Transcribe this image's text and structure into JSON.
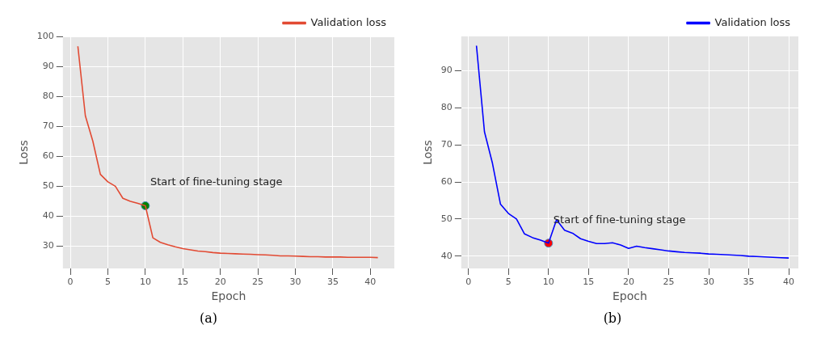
{
  "chart_data": [
    {
      "type": "line",
      "xlabel": "Epoch",
      "ylabel": "Loss",
      "legend": "top right",
      "grid": true,
      "xlim": [
        -1,
        43.2
      ],
      "ylim": [
        22.6,
        100
      ],
      "xticks": [
        0,
        5,
        10,
        15,
        20,
        25,
        30,
        35,
        40
      ],
      "yticks": [
        30,
        40,
        50,
        60,
        70,
        80,
        90,
        100
      ],
      "x": [
        1,
        2,
        3,
        4,
        5,
        6,
        7,
        8,
        9,
        10,
        11,
        12,
        13,
        14,
        15,
        16,
        17,
        18,
        19,
        20,
        21,
        22,
        23,
        24,
        25,
        26,
        27,
        28,
        29,
        30,
        31,
        32,
        33,
        34,
        35,
        36,
        37,
        38,
        39,
        40,
        41
      ],
      "series": [
        {
          "name": "Validation loss",
          "color": "#e24a33",
          "values": [
            96.7,
            73.5,
            65,
            54,
            51.5,
            50,
            46,
            45,
            44.3,
            43.5,
            32.8,
            31.3,
            30.5,
            29.8,
            29.2,
            28.8,
            28.4,
            28.2,
            27.9,
            27.7,
            27.6,
            27.5,
            27.4,
            27.3,
            27.2,
            27.1,
            27.0,
            26.8,
            26.8,
            26.7,
            26.6,
            26.5,
            26.5,
            26.4,
            26.4,
            26.4,
            26.3,
            26.3,
            26.3,
            26.3,
            26.2
          ]
        },
        {
          "type": "scatter",
          "marker": "circle",
          "color": "#008000",
          "x": [
            10
          ],
          "values": [
            43.5
          ]
        }
      ],
      "annotations": [
        {
          "text": "Start of fine-tuning stage",
          "x": 10,
          "y": 43.5
        },
        "(a)"
      ]
    },
    {
      "type": "line",
      "xlabel": "Epoch",
      "ylabel": "Loss",
      "legend": "top right",
      "grid": true,
      "xlim": [
        -0.9,
        41.2
      ],
      "ylim": [
        36.7,
        99.2
      ],
      "xticks": [
        0,
        5,
        10,
        15,
        20,
        25,
        30,
        35,
        40
      ],
      "yticks": [
        40,
        50,
        60,
        70,
        80,
        90
      ],
      "x": [
        1,
        2,
        3,
        4,
        5,
        6,
        7,
        8,
        9,
        10,
        11,
        12,
        13,
        14,
        15,
        16,
        17,
        18,
        19,
        20,
        21,
        22,
        23,
        24,
        25,
        26,
        27,
        28,
        29,
        30,
        31,
        32,
        33,
        34,
        35,
        36,
        37,
        38,
        39,
        40
      ],
      "series": [
        {
          "name": "Validation loss",
          "color": "#0000ff",
          "values": [
            96.7,
            73.5,
            65,
            54,
            51.5,
            50,
            46,
            45,
            44.3,
            43.5,
            49.8,
            47,
            46.2,
            44.7,
            44,
            43.4,
            43.4,
            43.6,
            43,
            42.1,
            42.7,
            42.3,
            42,
            41.7,
            41.4,
            41.2,
            41,
            40.9,
            40.8,
            40.6,
            40.5,
            40.4,
            40.3,
            40.2,
            40,
            39.9,
            39.8,
            39.7,
            39.6,
            39.5
          ]
        },
        {
          "type": "scatter",
          "marker": "circle",
          "color": "#ff0000",
          "x": [
            10
          ],
          "values": [
            43.5
          ]
        }
      ],
      "annotations": [
        {
          "text": "Start of fine-tuning stage",
          "x": 10,
          "y": 43.5
        },
        "(b)"
      ]
    }
  ]
}
